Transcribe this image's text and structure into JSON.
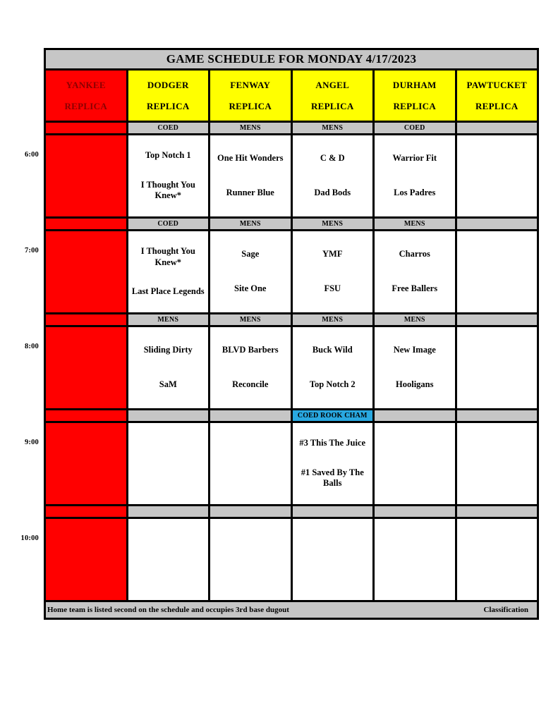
{
  "title": "GAME SCHEDULE FOR MONDAY 4/17/2023",
  "fields": [
    {
      "line1": "YANKEE",
      "line2": "REPLICA",
      "style": "red"
    },
    {
      "line1": "DODGER",
      "line2": "REPLICA",
      "style": "yellow"
    },
    {
      "line1": "FENWAY",
      "line2": "REPLICA",
      "style": "yellow"
    },
    {
      "line1": "ANGEL",
      "line2": "REPLICA",
      "style": "yellow"
    },
    {
      "line1": "DURHAM",
      "line2": "REPLICA",
      "style": "yellow"
    },
    {
      "line1": "PAWTUCKET",
      "line2": "REPLICA",
      "style": "yellow"
    }
  ],
  "slots": [
    {
      "time": "6:00",
      "cells": [
        {
          "blocked": true,
          "category": "",
          "teams": []
        },
        {
          "blocked": false,
          "category": "COED",
          "teams": [
            "Top Notch 1",
            "I Thought You Knew*"
          ]
        },
        {
          "blocked": false,
          "category": "MENS",
          "teams": [
            "One Hit Wonders",
            "Runner Blue"
          ]
        },
        {
          "blocked": false,
          "category": "MENS",
          "teams": [
            "C & D",
            "Dad Bods"
          ]
        },
        {
          "blocked": false,
          "category": "COED",
          "teams": [
            "Warrior Fit",
            "Los Padres"
          ]
        },
        {
          "blocked": false,
          "category": "",
          "teams": []
        }
      ]
    },
    {
      "time": "7:00",
      "cells": [
        {
          "blocked": true,
          "category": "",
          "teams": []
        },
        {
          "blocked": false,
          "category": "COED",
          "teams": [
            "I Thought You Knew*",
            "Last Place Legends"
          ]
        },
        {
          "blocked": false,
          "category": "MENS",
          "teams": [
            "Sage",
            "Site One"
          ]
        },
        {
          "blocked": false,
          "category": "MENS",
          "teams": [
            "YMF",
            "FSU"
          ]
        },
        {
          "blocked": false,
          "category": "MENS",
          "teams": [
            "Charros",
            "Free Ballers"
          ]
        },
        {
          "blocked": false,
          "category": "",
          "teams": []
        }
      ]
    },
    {
      "time": "8:00",
      "cells": [
        {
          "blocked": true,
          "category": "",
          "teams": []
        },
        {
          "blocked": false,
          "category": "MENS",
          "teams": [
            "Sliding Dirty",
            "SaM"
          ]
        },
        {
          "blocked": false,
          "category": "MENS",
          "teams": [
            "BLVD Barbers",
            "Reconcile"
          ]
        },
        {
          "blocked": false,
          "category": "MENS",
          "teams": [
            "Buck Wild",
            "Top Notch 2"
          ]
        },
        {
          "blocked": false,
          "category": "MENS",
          "teams": [
            "New Image",
            "Hooligans"
          ]
        },
        {
          "blocked": false,
          "category": "",
          "teams": []
        }
      ]
    },
    {
      "time": "9:00",
      "cells": [
        {
          "blocked": true,
          "category": "",
          "teams": []
        },
        {
          "blocked": false,
          "category": "",
          "teams": []
        },
        {
          "blocked": false,
          "category": "",
          "teams": []
        },
        {
          "blocked": false,
          "category": "COED ROOK CHAM",
          "highlight": true,
          "teams": [
            "#3 This The Juice",
            "#1 Saved By The Balls"
          ]
        },
        {
          "blocked": false,
          "category": "",
          "teams": []
        },
        {
          "blocked": false,
          "category": "",
          "teams": []
        }
      ]
    },
    {
      "time": "10:00",
      "cells": [
        {
          "blocked": true,
          "category": "",
          "teams": []
        },
        {
          "blocked": false,
          "category": "",
          "teams": []
        },
        {
          "blocked": false,
          "category": "",
          "teams": []
        },
        {
          "blocked": false,
          "category": "",
          "teams": []
        },
        {
          "blocked": false,
          "category": "",
          "teams": []
        },
        {
          "blocked": false,
          "category": "",
          "teams": []
        }
      ]
    }
  ],
  "footer": {
    "left": "Home team is listed second on the schedule and occupies 3rd base dugout",
    "right": "Classification"
  },
  "colors": {
    "red": "#FF0000",
    "yellow": "#FFFF00",
    "gray": "#C6C6C6",
    "highlight_blue": "#29A8E0",
    "yankee_text": "#8B0000",
    "border": "#000000"
  }
}
